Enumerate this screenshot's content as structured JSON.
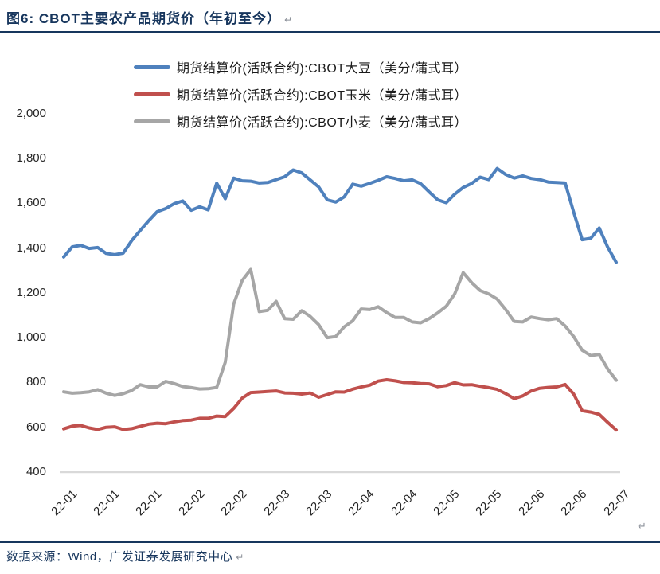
{
  "header": {
    "title": "图6:  CBOT主要农产品期货价（年初至今）",
    "paragraph_mark": "↵"
  },
  "footer": {
    "source_text": "数据来源：Wind，广发证券发展研究中心",
    "paragraph_mark": "↵"
  },
  "colors": {
    "title_navy": "#17365D",
    "rule_navy": "#17365D",
    "axis_line_gray": "#D9D9D9",
    "tick_text": "#262626",
    "soybean_blue": "#4F81BD",
    "corn_red": "#C0504D",
    "wheat_gray": "#A6A6A6"
  },
  "chart_data": {
    "type": "line",
    "title": "CBOT主要农产品期货价（年初至今）",
    "grid": false,
    "legend_position": "top",
    "x_axis": {
      "label": "",
      "tick_labels": [
        "22-01",
        "22-01",
        "22-01",
        "22-02",
        "22-02",
        "22-03",
        "22-03",
        "22-04",
        "22-04",
        "22-05",
        "22-05",
        "22-06",
        "22-06",
        "22-07"
      ]
    },
    "y_axis": {
      "min": 400,
      "max": 2000,
      "tick_step": 200,
      "tick_labels": [
        "2,000",
        "1,800",
        "1,600",
        "1,400",
        "1,200",
        "1,000",
        "800",
        "600",
        "400"
      ]
    },
    "series": [
      {
        "name": "期货结算价(活跃合约):CBOT大豆（美分/蒲式耳）",
        "color": "#4F81BD",
        "unit": "美分/蒲式耳",
        "values": [
          1360,
          1405,
          1412,
          1398,
          1402,
          1376,
          1370,
          1377,
          1433,
          1478,
          1522,
          1562,
          1576,
          1598,
          1610,
          1568,
          1584,
          1570,
          1689,
          1620,
          1712,
          1700,
          1698,
          1690,
          1692,
          1705,
          1718,
          1748,
          1735,
          1704,
          1672,
          1615,
          1605,
          1628,
          1685,
          1676,
          1688,
          1702,
          1718,
          1710,
          1700,
          1704,
          1687,
          1650,
          1615,
          1602,
          1640,
          1670,
          1688,
          1716,
          1705,
          1755,
          1728,
          1712,
          1722,
          1710,
          1705,
          1694,
          1692,
          1690,
          1560,
          1437,
          1443,
          1489,
          1404,
          1336
        ]
      },
      {
        "name": "期货结算价(活跃合约):CBOT玉米（美分/蒲式耳）",
        "color": "#C0504D",
        "unit": "美分/蒲式耳",
        "values": [
          593,
          605,
          608,
          597,
          590,
          600,
          602,
          590,
          594,
          604,
          614,
          618,
          616,
          624,
          630,
          632,
          640,
          640,
          650,
          648,
          684,
          730,
          755,
          757,
          760,
          762,
          753,
          752,
          748,
          753,
          734,
          746,
          758,
          757,
          770,
          780,
          788,
          806,
          812,
          807,
          800,
          799,
          795,
          794,
          781,
          786,
          799,
          789,
          790,
          783,
          777,
          769,
          750,
          728,
          740,
          762,
          774,
          778,
          780,
          791,
          748,
          674,
          668,
          658,
          622,
          588
        ]
      },
      {
        "name": "期货结算价(活跃合约):CBOT小麦（美分/蒲式耳）",
        "color": "#A6A6A6",
        "unit": "美分/蒲式耳",
        "values": [
          758,
          752,
          754,
          758,
          768,
          752,
          742,
          750,
          764,
          790,
          780,
          780,
          805,
          795,
          782,
          777,
          771,
          772,
          778,
          890,
          1150,
          1255,
          1304,
          1116,
          1122,
          1162,
          1085,
          1082,
          1120,
          1095,
          1058,
          1000,
          1005,
          1048,
          1075,
          1128,
          1125,
          1138,
          1112,
          1090,
          1090,
          1070,
          1066,
          1085,
          1110,
          1140,
          1195,
          1290,
          1245,
          1210,
          1195,
          1172,
          1125,
          1072,
          1070,
          1092,
          1085,
          1080,
          1085,
          1052,
          1005,
          944,
          920,
          925,
          860,
          810
        ]
      }
    ]
  }
}
